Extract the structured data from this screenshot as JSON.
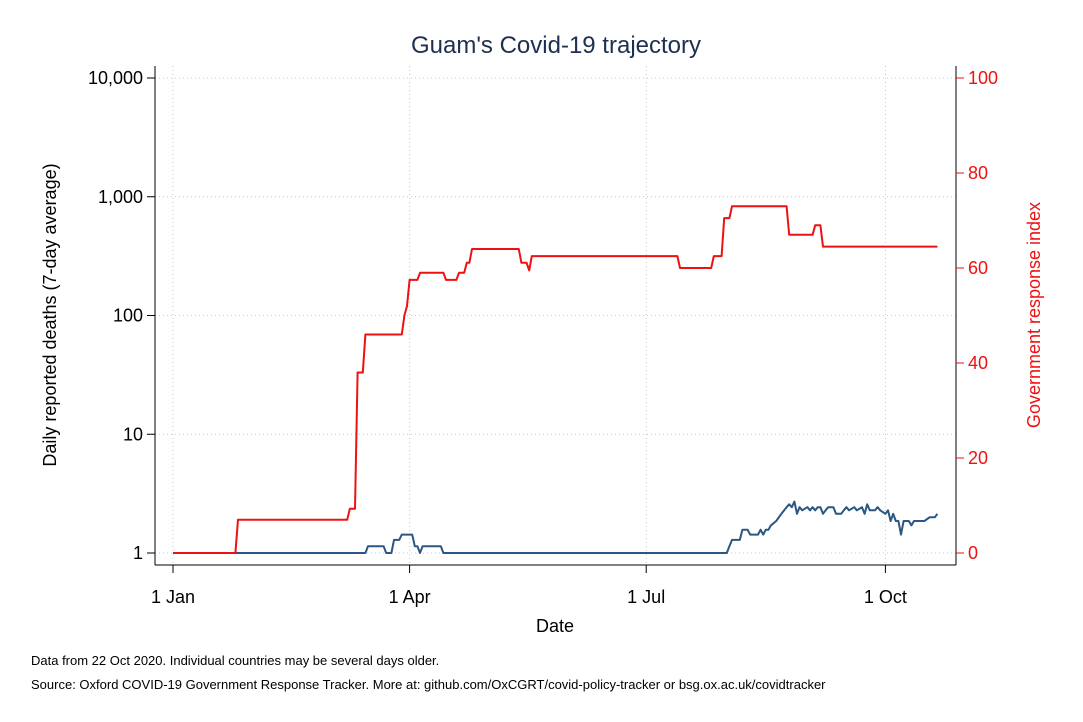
{
  "chart_data": {
    "type": "line",
    "title": "Guam's Covid-19 trajectory",
    "xlabel": "Date",
    "ylabel_left": "Daily reported deaths (7-day average)",
    "ylabel_right": "Government response index",
    "x_range": [
      "2020-01-01",
      "2020-10-22"
    ],
    "x_ticks": [
      {
        "date": "2020-01-01",
        "label": "1 Jan"
      },
      {
        "date": "2020-04-01",
        "label": "1 Apr"
      },
      {
        "date": "2020-07-01",
        "label": "1 Jul"
      },
      {
        "date": "2020-10-01",
        "label": "1 Oct"
      }
    ],
    "left_axis": {
      "scale": "log",
      "range": [
        1,
        10000
      ],
      "ticks": [
        {
          "value": 1,
          "label": "1"
        },
        {
          "value": 10,
          "label": "10"
        },
        {
          "value": 100,
          "label": "100"
        },
        {
          "value": 1000,
          "label": "1,000"
        },
        {
          "value": 10000,
          "label": "10,000"
        }
      ]
    },
    "right_axis": {
      "scale": "linear",
      "range": [
        0,
        100
      ],
      "ticks": [
        {
          "value": 0,
          "label": "0"
        },
        {
          "value": 20,
          "label": "20"
        },
        {
          "value": 40,
          "label": "40"
        },
        {
          "value": 60,
          "label": "60"
        },
        {
          "value": 80,
          "label": "80"
        },
        {
          "value": 100,
          "label": "100"
        }
      ]
    },
    "grid": true,
    "series": [
      {
        "axis": "left",
        "color": "#2a5783",
        "points": [
          [
            "2020-01-01",
            1
          ],
          [
            "2020-03-15",
            1
          ],
          [
            "2020-03-16",
            1.14
          ],
          [
            "2020-03-22",
            1.14
          ],
          [
            "2020-03-23",
            1
          ],
          [
            "2020-03-25",
            1
          ],
          [
            "2020-03-26",
            1.29
          ],
          [
            "2020-03-28",
            1.29
          ],
          [
            "2020-03-29",
            1.43
          ],
          [
            "2020-04-02",
            1.43
          ],
          [
            "2020-04-03",
            1.14
          ],
          [
            "2020-04-04",
            1.14
          ],
          [
            "2020-04-05",
            1
          ],
          [
            "2020-04-06",
            1.14
          ],
          [
            "2020-04-13",
            1.14
          ],
          [
            "2020-04-14",
            1
          ],
          [
            "2020-08-01",
            1
          ],
          [
            "2020-08-02",
            1.14
          ],
          [
            "2020-08-03",
            1.29
          ],
          [
            "2020-08-06",
            1.29
          ],
          [
            "2020-08-07",
            1.57
          ],
          [
            "2020-08-09",
            1.57
          ],
          [
            "2020-08-10",
            1.43
          ],
          [
            "2020-08-13",
            1.43
          ],
          [
            "2020-08-14",
            1.57
          ],
          [
            "2020-08-15",
            1.43
          ],
          [
            "2020-08-16",
            1.57
          ],
          [
            "2020-08-17",
            1.57
          ],
          [
            "2020-08-18",
            1.71
          ],
          [
            "2020-08-20",
            1.86
          ],
          [
            "2020-08-22",
            2.14
          ],
          [
            "2020-08-24",
            2.43
          ],
          [
            "2020-08-25",
            2.57
          ],
          [
            "2020-08-26",
            2.43
          ],
          [
            "2020-08-27",
            2.71
          ],
          [
            "2020-08-28",
            2.14
          ],
          [
            "2020-08-29",
            2.43
          ],
          [
            "2020-08-30",
            2.29
          ],
          [
            "2020-09-01",
            2.43
          ],
          [
            "2020-09-02",
            2.29
          ],
          [
            "2020-09-03",
            2.43
          ],
          [
            "2020-09-04",
            2.29
          ],
          [
            "2020-09-05",
            2.43
          ],
          [
            "2020-09-06",
            2.43
          ],
          [
            "2020-09-07",
            2.14
          ],
          [
            "2020-09-08",
            2.29
          ],
          [
            "2020-09-09",
            2.43
          ],
          [
            "2020-09-11",
            2.43
          ],
          [
            "2020-09-12",
            2.14
          ],
          [
            "2020-09-14",
            2.14
          ],
          [
            "2020-09-15",
            2.29
          ],
          [
            "2020-09-16",
            2.43
          ],
          [
            "2020-09-17",
            2.29
          ],
          [
            "2020-09-19",
            2.43
          ],
          [
            "2020-09-20",
            2.29
          ],
          [
            "2020-09-22",
            2.43
          ],
          [
            "2020-09-23",
            2.14
          ],
          [
            "2020-09-24",
            2.57
          ],
          [
            "2020-09-25",
            2.29
          ],
          [
            "2020-09-27",
            2.29
          ],
          [
            "2020-09-28",
            2.43
          ],
          [
            "2020-09-29",
            2.29
          ],
          [
            "2020-10-01",
            2.14
          ],
          [
            "2020-10-02",
            2.29
          ],
          [
            "2020-10-03",
            1.86
          ],
          [
            "2020-10-04",
            2.14
          ],
          [
            "2020-10-05",
            1.86
          ],
          [
            "2020-10-06",
            1.86
          ],
          [
            "2020-10-07",
            1.43
          ],
          [
            "2020-10-08",
            1.86
          ],
          [
            "2020-10-10",
            1.86
          ],
          [
            "2020-10-11",
            1.71
          ],
          [
            "2020-10-12",
            1.86
          ],
          [
            "2020-10-15",
            1.86
          ],
          [
            "2020-10-16",
            1.86
          ],
          [
            "2020-10-18",
            2
          ],
          [
            "2020-10-20",
            2
          ],
          [
            "2020-10-21",
            2.14
          ]
        ]
      },
      {
        "axis": "right",
        "color": "#ee1111",
        "points": [
          [
            "2020-01-01",
            0
          ],
          [
            "2020-01-25",
            0
          ],
          [
            "2020-01-26",
            7
          ],
          [
            "2020-03-08",
            7
          ],
          [
            "2020-03-09",
            9.3
          ],
          [
            "2020-03-11",
            9.3
          ],
          [
            "2020-03-12",
            38
          ],
          [
            "2020-03-14",
            38
          ],
          [
            "2020-03-15",
            46
          ],
          [
            "2020-03-28",
            46
          ],
          [
            "2020-03-29",
            46
          ],
          [
            "2020-03-30",
            50
          ],
          [
            "2020-03-31",
            52
          ],
          [
            "2020-04-01",
            57.5
          ],
          [
            "2020-04-04",
            57.5
          ],
          [
            "2020-04-05",
            59
          ],
          [
            "2020-04-10",
            59
          ],
          [
            "2020-04-11",
            59
          ],
          [
            "2020-04-14",
            59
          ],
          [
            "2020-04-15",
            57.5
          ],
          [
            "2020-04-19",
            57.5
          ],
          [
            "2020-04-20",
            59
          ],
          [
            "2020-04-22",
            59
          ],
          [
            "2020-04-23",
            61.1
          ],
          [
            "2020-04-24",
            61.1
          ],
          [
            "2020-04-25",
            64
          ],
          [
            "2020-05-07",
            64
          ],
          [
            "2020-05-08",
            64
          ],
          [
            "2020-05-13",
            64
          ],
          [
            "2020-05-14",
            61.1
          ],
          [
            "2020-05-16",
            61.1
          ],
          [
            "2020-05-17",
            59.5
          ],
          [
            "2020-05-18",
            62.5
          ],
          [
            "2020-07-13",
            62.5
          ],
          [
            "2020-07-14",
            60
          ],
          [
            "2020-07-26",
            60
          ],
          [
            "2020-07-27",
            62.5
          ],
          [
            "2020-07-30",
            62.5
          ],
          [
            "2020-07-31",
            70.5
          ],
          [
            "2020-08-02",
            70.5
          ],
          [
            "2020-08-03",
            73
          ],
          [
            "2020-08-24",
            73
          ],
          [
            "2020-08-25",
            67
          ],
          [
            "2020-09-03",
            67
          ],
          [
            "2020-09-04",
            69
          ],
          [
            "2020-09-06",
            69
          ],
          [
            "2020-09-07",
            64.5
          ],
          [
            "2020-10-21",
            64.5
          ]
        ]
      }
    ],
    "notes": [
      "Data from 22 Oct 2020. Individual countries may be several days older.",
      "Source: Oxford COVID-19 Government Response Tracker. More at: github.com/OxCGRT/covid-policy-tracker or bsg.ox.ac.uk/covidtracker"
    ]
  }
}
